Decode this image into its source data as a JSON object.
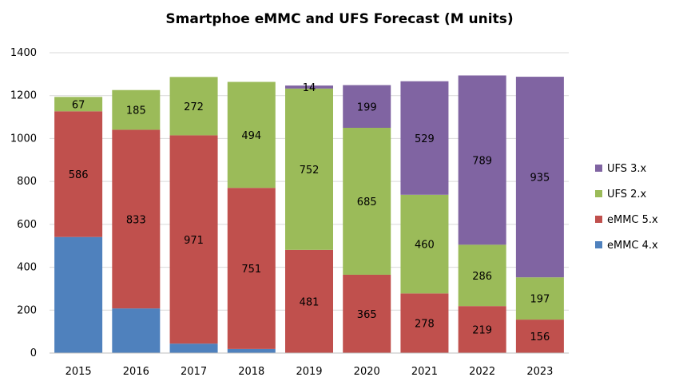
{
  "chart_data": {
    "type": "bar",
    "stacked": true,
    "title": "Smartphoe eMMC and UFS Forecast (M units)",
    "xlabel": "",
    "ylabel": "",
    "ylim": [
      0,
      1400
    ],
    "yticks": [
      0,
      200,
      400,
      600,
      800,
      1000,
      1200,
      1400
    ],
    "grid": true,
    "legend_position": "right",
    "categories": [
      "2015",
      "2016",
      "2017",
      "2018",
      "2019",
      "2020",
      "2021",
      "2022",
      "2023"
    ],
    "series": [
      {
        "name": "eMMC 4.x",
        "color": "#4F81BD",
        "values": [
          541,
          208,
          44,
          19,
          0,
          0,
          0,
          0,
          0
        ],
        "labels": [
          "",
          "",
          "",
          "",
          "",
          "",
          "",
          "",
          ""
        ]
      },
      {
        "name": "eMMC 5.x",
        "color": "#C0504D",
        "values": [
          586,
          833,
          971,
          751,
          481,
          365,
          278,
          219,
          156
        ],
        "labels": [
          "586",
          "833",
          "971",
          "751",
          "481",
          "365",
          "278",
          "219",
          "156"
        ]
      },
      {
        "name": "UFS 2.x",
        "color": "#9BBB59",
        "values": [
          67,
          185,
          272,
          494,
          752,
          685,
          460,
          286,
          197
        ],
        "labels": [
          "67",
          "185",
          "272",
          "494",
          "752",
          "685",
          "460",
          "286",
          "197"
        ]
      },
      {
        "name": "UFS 3.x",
        "color": "#8064A2",
        "values": [
          0,
          0,
          0,
          0,
          14,
          199,
          529,
          789,
          935
        ],
        "labels": [
          "",
          "",
          "",
          "",
          "14",
          "199",
          "529",
          "789",
          "935"
        ]
      }
    ]
  }
}
